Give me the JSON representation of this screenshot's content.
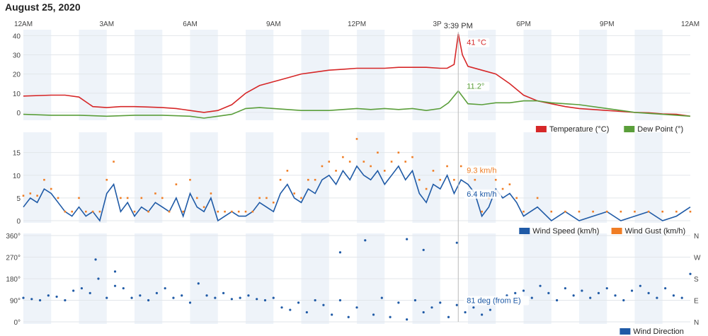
{
  "page_title": "August 25, 2020",
  "chart_data": [
    {
      "type": "line",
      "x_ticks": [
        "12AM",
        "3AM",
        "6AM",
        "9AM",
        "12PM",
        "3PM",
        "6PM",
        "9PM",
        "12AM"
      ],
      "ylim": [
        -3,
        42
      ],
      "yticks": [
        "0",
        "10",
        "20",
        "30",
        "40"
      ],
      "grid": true,
      "legend_placement": "bottom-right",
      "hover_time": "3:39 PM",
      "series": [
        {
          "name": "Temperature (°C)",
          "color": "#d62728",
          "callout": "41 °C",
          "x_hours": [
            0,
            1,
            1.5,
            2,
            2.5,
            3,
            3.5,
            4,
            4.5,
            5,
            5.5,
            6,
            6.5,
            7,
            7.5,
            8,
            8.5,
            9,
            9.5,
            10,
            10.5,
            11,
            11.5,
            12,
            12.5,
            13,
            13.5,
            14,
            14.5,
            15,
            15.25,
            15.5,
            15.65,
            15.8,
            16,
            16.5,
            17,
            17.5,
            18,
            18.5,
            19,
            19.5,
            20,
            20.5,
            21,
            21.5,
            22,
            22.5,
            23,
            23.5,
            24
          ],
          "values": [
            8.5,
            9,
            9,
            8,
            3,
            2.5,
            3,
            3,
            2.8,
            2.5,
            2,
            1,
            0,
            1,
            4,
            10,
            14,
            16,
            18,
            20,
            21,
            22,
            22.5,
            23,
            23,
            23,
            23.5,
            23.5,
            23.5,
            23,
            23,
            25,
            41,
            30,
            24,
            22,
            20,
            15,
            9,
            6,
            4.5,
            3,
            2,
            1.5,
            1,
            0.5,
            0,
            -0.2,
            -0.8,
            -1,
            -2
          ]
        },
        {
          "name": "Dew Point (°)",
          "color": "#5a9e3a",
          "callout": "11.2°",
          "x_hours": [
            0,
            1,
            2,
            3,
            4,
            5,
            6,
            6.5,
            7,
            7.5,
            8,
            8.5,
            9,
            9.5,
            10,
            11,
            11.5,
            12,
            12.5,
            13,
            13.5,
            14,
            14.5,
            15,
            15.3,
            15.65,
            16,
            16.5,
            17,
            17.5,
            18,
            18.5,
            19,
            19.5,
            20,
            21,
            22,
            23,
            24
          ],
          "values": [
            -1,
            -1.5,
            -1.5,
            -2,
            -1.5,
            -1.5,
            -2,
            -3,
            -2,
            -1,
            2,
            2.5,
            2,
            1.5,
            1,
            1,
            1.5,
            2,
            1.5,
            2,
            1.5,
            2,
            1,
            2,
            5,
            11.2,
            4.5,
            4,
            5,
            5,
            6,
            6,
            5,
            4.5,
            4,
            2,
            0,
            -1,
            -2
          ]
        }
      ]
    },
    {
      "type": "line",
      "x_ticks": [
        "12AM",
        "3AM",
        "6AM",
        "9AM",
        "12PM",
        "3PM",
        "6PM",
        "9PM",
        "12AM"
      ],
      "ylim": [
        0,
        19
      ],
      "yticks": [
        "0",
        "5",
        "10",
        "15"
      ],
      "grid": true,
      "legend_placement": "bottom-right",
      "series": [
        {
          "name": "Wind Speed (km/h)",
          "color": "#1f5aa6",
          "callout": "6.4 km/h",
          "x_hours": [
            0,
            0.25,
            0.5,
            0.75,
            1,
            1.25,
            1.5,
            1.75,
            2,
            2.25,
            2.5,
            2.75,
            3,
            3.25,
            3.5,
            3.75,
            4,
            4.25,
            4.5,
            4.75,
            5,
            5.25,
            5.5,
            5.75,
            6,
            6.25,
            6.5,
            6.75,
            7,
            7.25,
            7.5,
            7.75,
            8,
            8.25,
            8.5,
            8.75,
            9,
            9.25,
            9.5,
            9.75,
            10,
            10.25,
            10.5,
            10.75,
            11,
            11.25,
            11.5,
            11.75,
            12,
            12.25,
            12.5,
            12.75,
            13,
            13.25,
            13.5,
            13.75,
            14,
            14.25,
            14.5,
            14.75,
            15,
            15.25,
            15.5,
            15.75,
            16,
            16.25,
            16.5,
            16.75,
            17,
            17.25,
            17.5,
            17.75,
            18,
            18.5,
            19,
            19.5,
            20,
            20.5,
            21,
            21.5,
            22,
            22.5,
            23,
            23.5,
            24
          ],
          "values": [
            3,
            5,
            4,
            7,
            6,
            4,
            2,
            1,
            3,
            1,
            2,
            0,
            6,
            8,
            2,
            4,
            1,
            3,
            2,
            4,
            3,
            2,
            5,
            1,
            6,
            3,
            2,
            5,
            0,
            1,
            2,
            1,
            1,
            2,
            4,
            3,
            2,
            6,
            8,
            5,
            4,
            7,
            6,
            9,
            10,
            8,
            11,
            9,
            12,
            10,
            9,
            11,
            8,
            10,
            12,
            9,
            11,
            6,
            4,
            8,
            7,
            10,
            6,
            9,
            8,
            6,
            1,
            3,
            7,
            5,
            6,
            4,
            1,
            3,
            0,
            2,
            0,
            1,
            2,
            0,
            1,
            2,
            0,
            1,
            3
          ]
        },
        {
          "name": "Wind Gust (km/h)",
          "color": "#f07d24",
          "callout": "9.3 km/h",
          "x_hours": [
            0,
            0.25,
            0.5,
            0.75,
            1,
            1.25,
            1.5,
            1.75,
            2,
            2.25,
            2.5,
            2.75,
            3,
            3.25,
            3.5,
            3.75,
            4,
            4.25,
            4.5,
            4.75,
            5,
            5.25,
            5.5,
            5.75,
            6,
            6.25,
            6.5,
            6.75,
            7,
            7.25,
            7.5,
            7.75,
            8,
            8.25,
            8.5,
            8.75,
            9,
            9.25,
            9.5,
            9.75,
            10,
            10.25,
            10.5,
            10.75,
            11,
            11.25,
            11.5,
            11.75,
            12,
            12.25,
            12.5,
            12.75,
            13,
            13.25,
            13.5,
            13.75,
            14,
            14.25,
            14.5,
            14.75,
            15,
            15.25,
            15.5,
            15.75,
            16,
            16.25,
            16.5,
            16.75,
            17,
            17.25,
            17.5,
            17.75,
            18,
            18.5,
            19,
            19.5,
            20,
            20.5,
            21,
            21.5,
            22,
            22.5,
            23,
            23.5,
            24
          ],
          "values": [
            5.5,
            6,
            5.5,
            9,
            7,
            5,
            2,
            2,
            5,
            2,
            2,
            2,
            9,
            13,
            5,
            5,
            2,
            5,
            2,
            6,
            5,
            2,
            8,
            2,
            9,
            5,
            3,
            6,
            2,
            2,
            2,
            2,
            2,
            2,
            5,
            5,
            4,
            9,
            11,
            6,
            5,
            9,
            9,
            12,
            13,
            11,
            14,
            13,
            18,
            13,
            12,
            15,
            11,
            13,
            15,
            13,
            14,
            9,
            7,
            11,
            9,
            12,
            9,
            12,
            11,
            9,
            2,
            5,
            9,
            7,
            8,
            5,
            2,
            5,
            2,
            2,
            2,
            2,
            2,
            2,
            2,
            2,
            2,
            2,
            2
          ]
        }
      ]
    },
    {
      "type": "scatter",
      "x_ticks": [
        "12AM",
        "3AM",
        "6AM",
        "9AM",
        "12PM",
        "3PM",
        "6PM",
        "9PM",
        "12AM"
      ],
      "ylim": [
        0,
        360
      ],
      "yticks": [
        "0°",
        "90°",
        "180°",
        "270°",
        "360°"
      ],
      "right_ticks": [
        "N",
        "E",
        "S",
        "W",
        "N"
      ],
      "grid": true,
      "legend_placement": "bottom-right",
      "series": [
        {
          "name": "Wind Direction",
          "color": "#1f5aa6",
          "callout": "81 deg (from E)",
          "x_hours": [
            0,
            0.3,
            0.6,
            0.9,
            1.2,
            1.5,
            1.8,
            2.1,
            2.4,
            2.7,
            3.0,
            3.3,
            3.6,
            3.9,
            4.2,
            4.5,
            4.8,
            5.1,
            5.4,
            5.7,
            6.0,
            6.3,
            6.6,
            6.9,
            7.2,
            7.5,
            7.8,
            8.1,
            8.4,
            8.7,
            9.0,
            9.3,
            9.6,
            9.9,
            10.2,
            10.5,
            10.8,
            11.1,
            11.4,
            11.7,
            12.0,
            12.3,
            12.6,
            12.9,
            13.2,
            13.5,
            13.8,
            14.1,
            14.4,
            14.7,
            15.0,
            15.3,
            15.6,
            15.9,
            16.2,
            16.5,
            16.8,
            17.1,
            17.4,
            17.7,
            18.0,
            18.3,
            18.6,
            18.9,
            19.2,
            19.5,
            19.8,
            20.1,
            20.4,
            20.7,
            21.0,
            21.3,
            21.6,
            21.9,
            22.2,
            22.5,
            22.8,
            23.1,
            23.4,
            23.7,
            24.0,
            2.6,
            3.3,
            11.4,
            13.8,
            14.4,
            15.6
          ],
          "values": [
            100,
            95,
            90,
            110,
            105,
            90,
            130,
            140,
            120,
            180,
            100,
            150,
            140,
            100,
            110,
            90,
            120,
            140,
            100,
            110,
            80,
            160,
            110,
            100,
            120,
            95,
            100,
            110,
            95,
            90,
            100,
            60,
            50,
            80,
            40,
            90,
            70,
            30,
            90,
            20,
            60,
            340,
            30,
            100,
            20,
            80,
            10,
            90,
            40,
            60,
            80,
            20,
            70,
            40,
            60,
            30,
            50,
            90,
            110,
            120,
            130,
            100,
            150,
            120,
            90,
            140,
            110,
            130,
            100,
            120,
            140,
            110,
            90,
            130,
            150,
            120,
            100,
            140,
            110,
            100,
            200,
            260,
            210,
            290,
            345,
            300,
            330
          ]
        }
      ]
    }
  ]
}
